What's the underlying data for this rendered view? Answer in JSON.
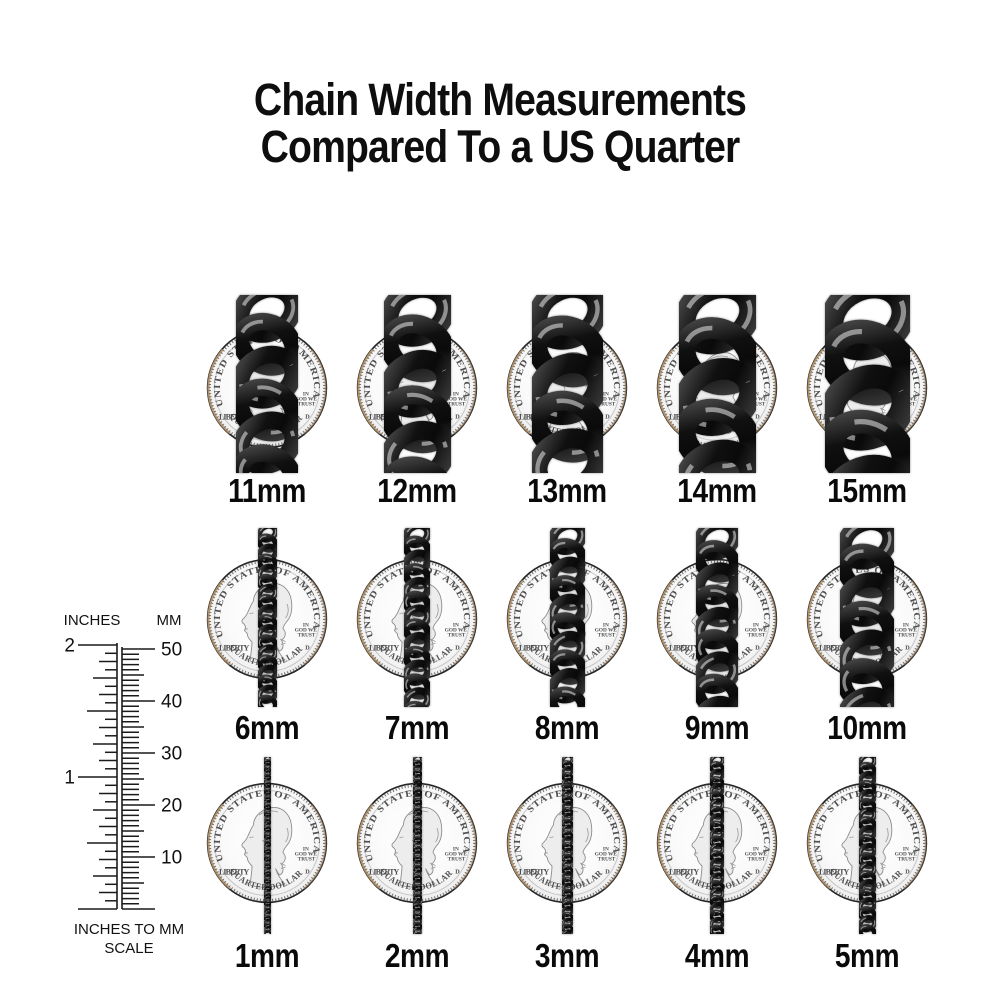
{
  "title": {
    "line1": "Chain Width Measurements",
    "line2": "Compared To a US Quarter"
  },
  "coin": {
    "top_text": "UNITED STATES OF AMERICA",
    "bottom_text": "QUARTER DOLLAR",
    "left_text": "LIBERTY",
    "motto": [
      "IN",
      "GOD WE",
      "TRUST"
    ],
    "mint_mark": "D"
  },
  "ruler": {
    "left_header": "INCHES",
    "right_header": "MM",
    "inch_max": 2,
    "mm_max": 50,
    "inch_labels": [
      {
        "text": "2",
        "value": 2
      },
      {
        "text": "1",
        "value": 1
      }
    ],
    "mm_labels": [
      {
        "text": "50",
        "value": 50
      },
      {
        "text": "40",
        "value": 40
      },
      {
        "text": "30",
        "value": 30
      },
      {
        "text": "20",
        "value": 20
      },
      {
        "text": "10",
        "value": 10
      }
    ],
    "caption_line1": "INCHES TO MM",
    "caption_line2": "SCALE"
  },
  "rows": [
    {
      "chains": [
        {
          "label": "11mm",
          "mm": 11
        },
        {
          "label": "12mm",
          "mm": 12
        },
        {
          "label": "13mm",
          "mm": 13
        },
        {
          "label": "14mm",
          "mm": 14
        },
        {
          "label": "15mm",
          "mm": 15
        }
      ]
    },
    {
      "chains": [
        {
          "label": "6mm",
          "mm": 6
        },
        {
          "label": "7mm",
          "mm": 7
        },
        {
          "label": "8mm",
          "mm": 8
        },
        {
          "label": "9mm",
          "mm": 9
        },
        {
          "label": "10mm",
          "mm": 10
        }
      ]
    },
    {
      "chains": [
        {
          "label": "1mm",
          "mm": 1
        },
        {
          "label": "2mm",
          "mm": 2
        },
        {
          "label": "3mm",
          "mm": 3
        },
        {
          "label": "4mm",
          "mm": 4
        },
        {
          "label": "5mm",
          "mm": 5
        }
      ]
    }
  ],
  "colors": {
    "text": "#0e0e0e",
    "ruler_line": "#1a1a1a",
    "coin_outline": "#262626",
    "coin_letters": "#4e4e4e",
    "coin_edge_copper": "#c19a6b",
    "chain_black": "#0a0a0a",
    "chain_mid": "#3a3a3a",
    "chain_glint": "#e8e8e8"
  }
}
